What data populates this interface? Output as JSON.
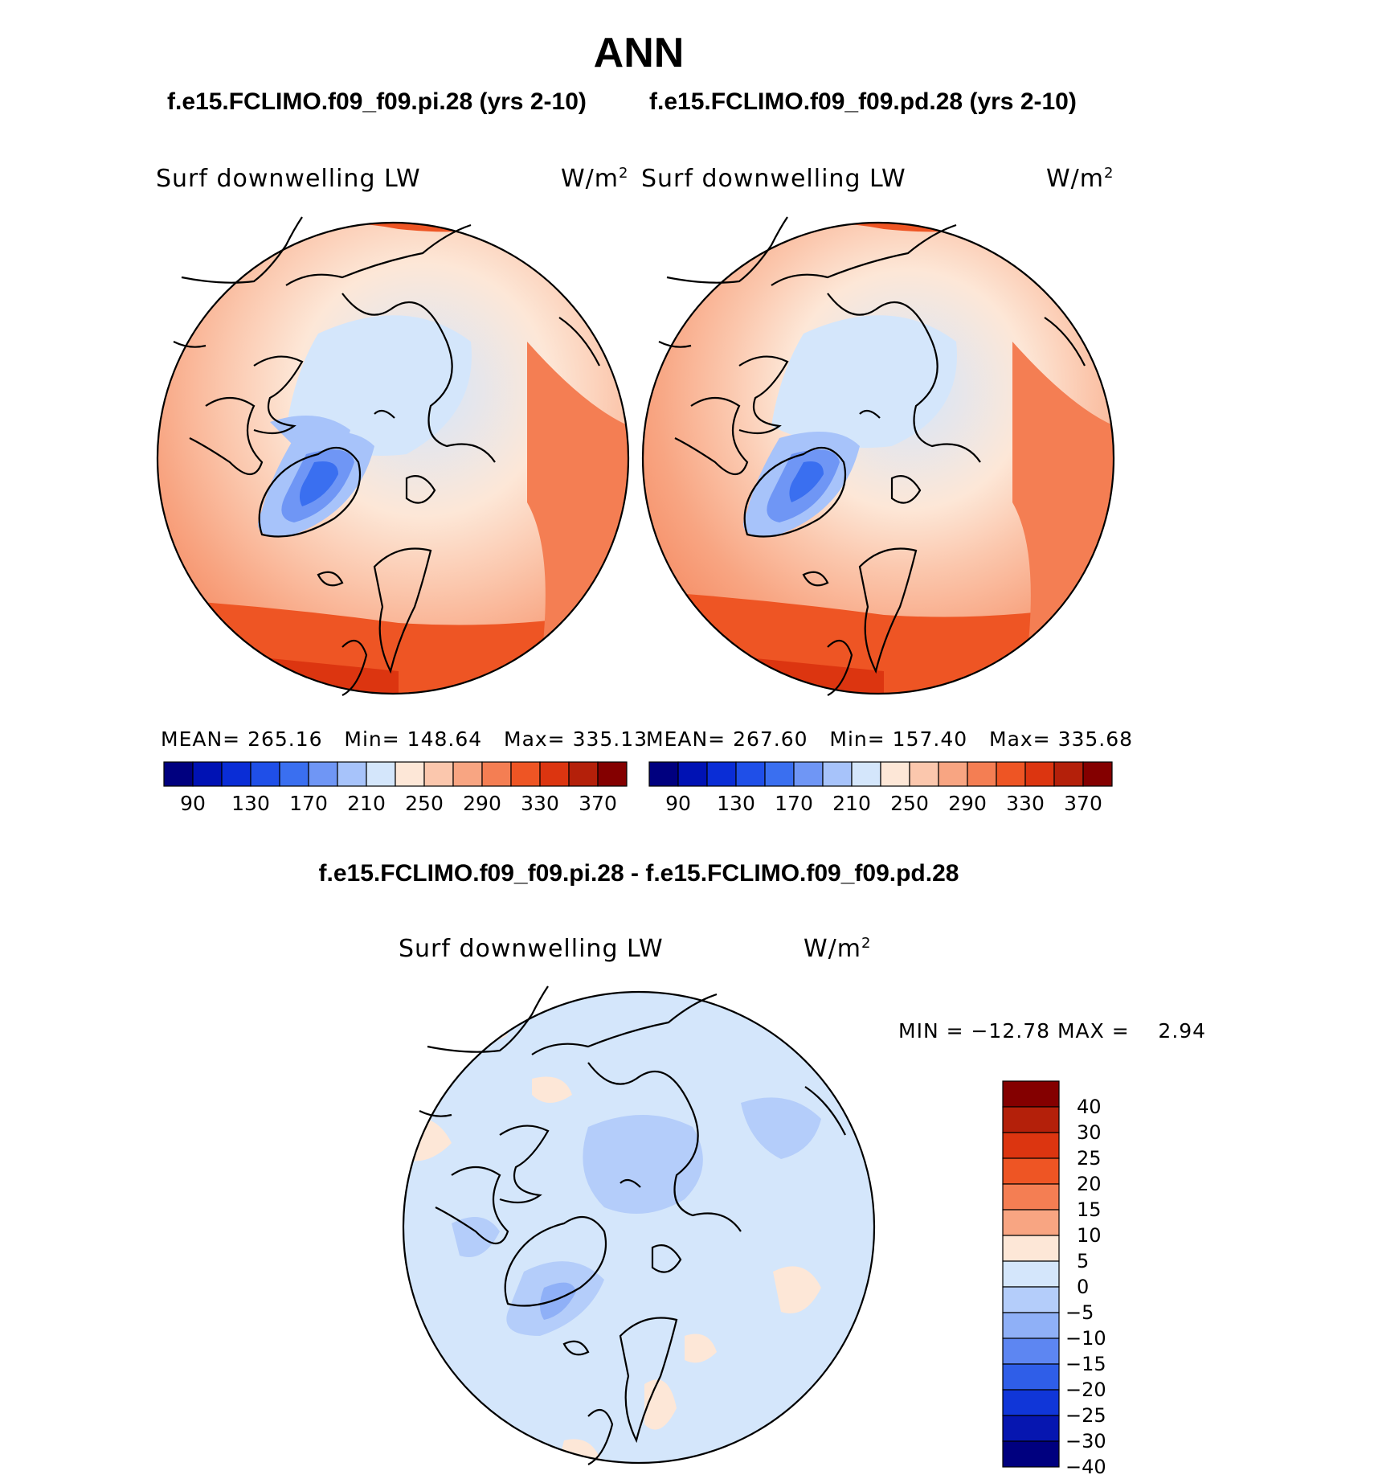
{
  "title": "ANN",
  "panels": [
    {
      "case": "f.e15.FCLIMO.f09_f09.pi.28 (yrs 2-10)",
      "variable": "Surf downwelling LW",
      "units_base": "W/m",
      "units_exp": "2",
      "stats": {
        "mean_label": "MEAN=",
        "mean": "265.16",
        "min_label": "Min=",
        "min": "148.64",
        "max_label": "Max=",
        "max": "335.13"
      }
    },
    {
      "case": "f.e15.FCLIMO.f09_f09.pd.28 (yrs 2-10)",
      "variable": "Surf downwelling LW",
      "units_base": "W/m",
      "units_exp": "2",
      "stats": {
        "mean_label": "MEAN=",
        "mean": "267.60",
        "min_label": "Min=",
        "min": "157.40",
        "max_label": "Max=",
        "max": "335.68"
      }
    }
  ],
  "abs_colorbar": {
    "labels": [
      "90",
      "130",
      "170",
      "210",
      "250",
      "290",
      "330",
      "370"
    ],
    "colors": [
      "#00007f",
      "#0012b4",
      "#0a2dd6",
      "#1f4fe8",
      "#3a6ff0",
      "#6f96f5",
      "#a7c3fa",
      "#d4e6fb",
      "#fde7d7",
      "#fbc7ad",
      "#f8a582",
      "#f47e53",
      "#ee5524",
      "#dc3510",
      "#b4200a",
      "#840000"
    ]
  },
  "diff": {
    "title": "f.e15.FCLIMO.f09_f09.pi.28 - f.e15.FCLIMO.f09_f09.pd.28",
    "variable": "Surf downwelling LW",
    "units_base": "W/m",
    "units_exp": "2",
    "minmax": "MIN = −12.78 MAX =    2.94"
  },
  "diff_colorbar": {
    "labels": [
      "40",
      "30",
      "25",
      "20",
      "15",
      "10",
      "5",
      "0",
      "−5",
      "−10",
      "−15",
      "−20",
      "−25",
      "−30",
      "−40"
    ],
    "colors": [
      "#840000",
      "#b4200a",
      "#dc3510",
      "#ee5524",
      "#f47e53",
      "#f8a582",
      "#fde7d7",
      "#d4e6fb",
      "#b4cdfa",
      "#8fb0f7",
      "#5d86f2",
      "#2f5ee8",
      "#1036d8",
      "#0616b0",
      "#00007f"
    ]
  },
  "map_colors": {
    "land": "#000000",
    "coast": "#000000"
  }
}
